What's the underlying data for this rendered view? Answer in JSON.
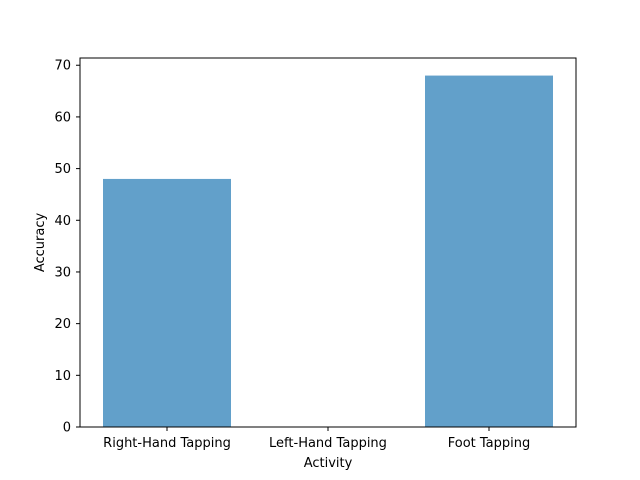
{
  "chart_data": {
    "type": "bar",
    "categories": [
      "Right-Hand Tapping",
      "Left-Hand Tapping",
      "Foot Tapping"
    ],
    "values": [
      48,
      0,
      68
    ],
    "title": "",
    "xlabel": "Activity",
    "ylabel": "Accuracy",
    "ylim": [
      0,
      71.4
    ],
    "yticks": [
      0,
      10,
      20,
      30,
      40,
      50,
      60,
      70
    ],
    "grid": false,
    "bar_color": "#62a0ca"
  }
}
